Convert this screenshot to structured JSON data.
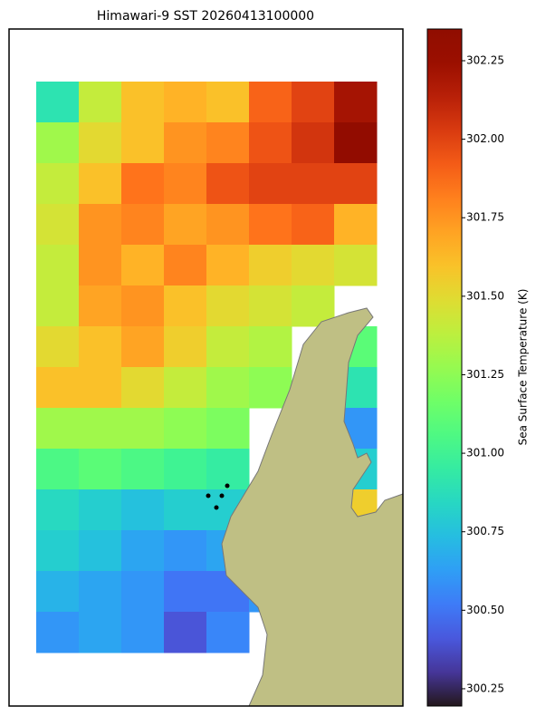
{
  "chart_data": {
    "type": "heatmap",
    "title": "Himawari-9 SST 20260413100000",
    "colorbar_label": "Sea Surface Temperature (K)",
    "colormap": "turbo",
    "clim": [
      300.195,
      302.351
    ],
    "cticks": [
      300.25,
      {
        "value": 300.5,
        "label": "300.50"
      },
      300.75,
      {
        "value": 301.0,
        "label": "301.00"
      },
      301.25,
      {
        "value": 301.5,
        "label": "301.50"
      },
      301.75,
      {
        "value": 302.0,
        "label": "302.00"
      },
      302.25
    ],
    "values": [
      [
        300.9,
        301.4,
        301.6,
        301.65,
        301.6,
        301.9,
        302.0,
        302.2
      ],
      [
        301.3,
        301.5,
        301.6,
        301.75,
        301.8,
        301.95,
        302.05,
        302.3
      ],
      [
        301.4,
        301.6,
        301.85,
        301.8,
        301.95,
        302.0,
        302.0,
        302.0
      ],
      [
        301.45,
        301.75,
        301.8,
        301.7,
        301.75,
        301.85,
        301.9,
        301.65
      ],
      [
        301.4,
        301.75,
        301.65,
        301.8,
        301.65,
        301.55,
        301.5,
        301.45
      ],
      [
        301.4,
        301.7,
        301.75,
        301.6,
        301.5,
        301.45,
        301.4,
        null
      ],
      [
        301.5,
        301.6,
        301.7,
        301.55,
        301.4,
        301.35,
        null,
        301.1
      ],
      [
        301.6,
        301.6,
        301.5,
        301.4,
        301.3,
        301.25,
        null,
        300.9
      ],
      [
        301.3,
        301.3,
        301.3,
        301.25,
        301.2,
        null,
        null,
        300.6
      ],
      [
        301.05,
        301.1,
        301.05,
        301.0,
        300.95,
        null,
        null,
        300.8
      ],
      [
        300.85,
        300.8,
        300.75,
        300.8,
        300.8,
        null,
        null,
        301.55
      ],
      [
        300.8,
        300.75,
        300.65,
        300.6,
        300.65,
        null,
        null,
        null
      ],
      [
        300.7,
        300.65,
        300.6,
        300.5,
        300.5,
        300.6,
        null,
        null
      ],
      [
        300.6,
        300.65,
        300.6,
        300.4,
        300.55,
        null,
        null,
        null
      ]
    ]
  }
}
